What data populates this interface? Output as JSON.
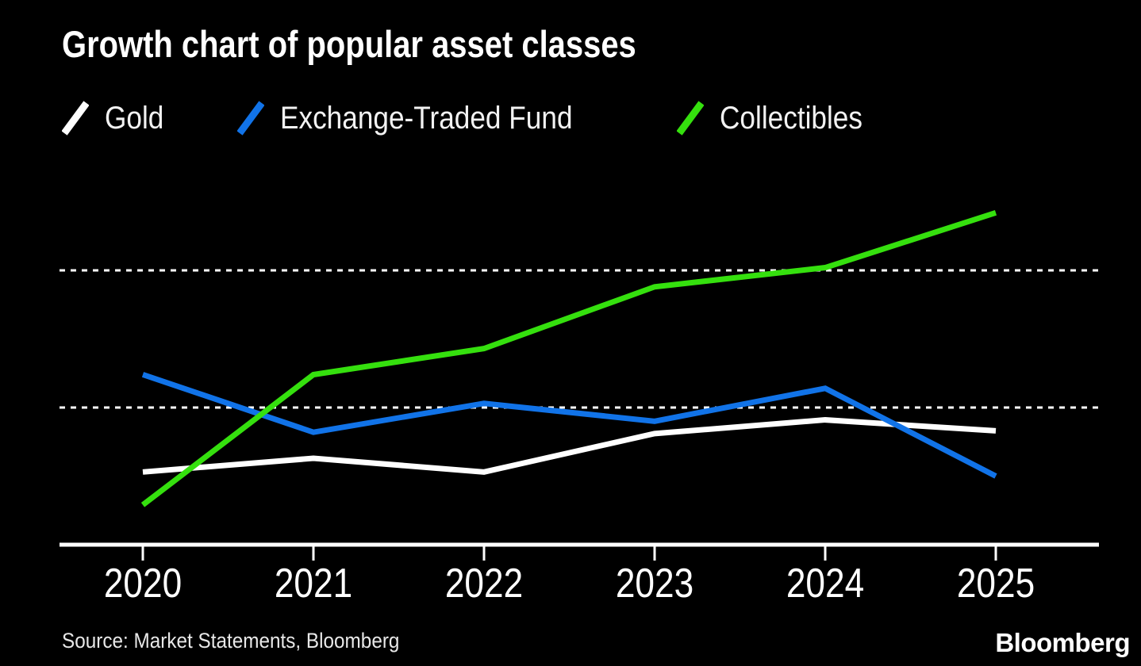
{
  "chart_data": {
    "type": "line",
    "title": "Growth chart of popular asset classes",
    "categories": [
      "2020",
      "2021",
      "2022",
      "2023",
      "2024",
      "2025"
    ],
    "series": [
      {
        "name": "Gold",
        "color": "#ffffff",
        "values": [
          53,
          63,
          53,
          81,
          91,
          83
        ]
      },
      {
        "name": "Exchange-Traded Fund",
        "color": "#1173e8",
        "values": [
          124,
          82,
          103,
          90,
          114,
          50
        ]
      },
      {
        "name": "Collectibles",
        "color": "#35e00e",
        "values": [
          29,
          124,
          143,
          188,
          202,
          242
        ]
      }
    ],
    "xlabel": "",
    "ylabel": "",
    "ylim": [
      0,
      260
    ],
    "gridline_values": [
      100,
      200
    ],
    "grid_style": "dotted",
    "grid_color": "#ffffff",
    "axis_color": "#ffffff",
    "legend_position": "top-left",
    "background": "#000000"
  },
  "footer": {
    "source": "Source: Market Statements, Bloomberg",
    "brand": "Bloomberg"
  }
}
